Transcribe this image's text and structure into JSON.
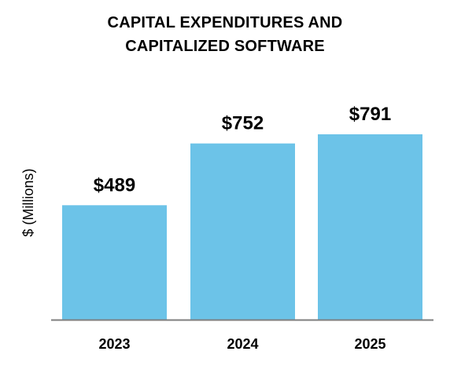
{
  "chart_data": {
    "type": "bar",
    "title_lines": [
      "CAPITAL EXPENDITURES AND",
      "CAPITALIZED SOFTWARE"
    ],
    "ylabel": "$ (Millions)",
    "xlabel": "",
    "categories": [
      "2023",
      "2024",
      "2025"
    ],
    "values": [
      489,
      752,
      791
    ],
    "value_labels": [
      "$489",
      "$752",
      "$791"
    ],
    "ylim": [
      0,
      791
    ],
    "grid": false,
    "legend": "none",
    "colors": {
      "bar": "#6CC3E8",
      "baseline": "#7F7F7F",
      "text": "#000000"
    }
  }
}
